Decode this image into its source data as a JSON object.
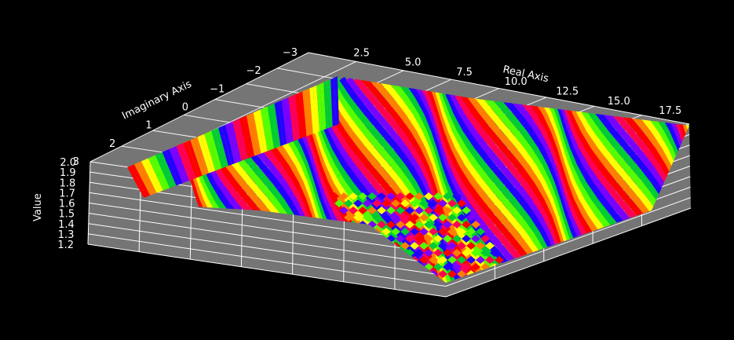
{
  "chart_data": {
    "type": "surface3d",
    "title": "",
    "colormap": "prism",
    "background_color": "#000000",
    "pane_color": "#757575",
    "grid_color": "#ffffff",
    "text_color": "#ffffff",
    "xaxis": {
      "label": "Real Axis",
      "ticks": [
        "2.5",
        "5.0",
        "7.5",
        "10.0",
        "12.5",
        "15.0",
        "17.5"
      ],
      "range": [
        0,
        19
      ]
    },
    "yaxis": {
      "label": "Imaginary Axis",
      "ticks": [
        "−3",
        "−2",
        "−1",
        "0",
        "1",
        "2",
        "3"
      ],
      "range": [
        -3,
        3
      ]
    },
    "zaxis": {
      "label": "Value",
      "ticks": [
        "1.2",
        "1.3",
        "1.4",
        "1.5",
        "1.6",
        "1.7",
        "1.8",
        "1.9",
        "2.0"
      ],
      "range": [
        1.2,
        2.0
      ]
    },
    "grid": true
  }
}
